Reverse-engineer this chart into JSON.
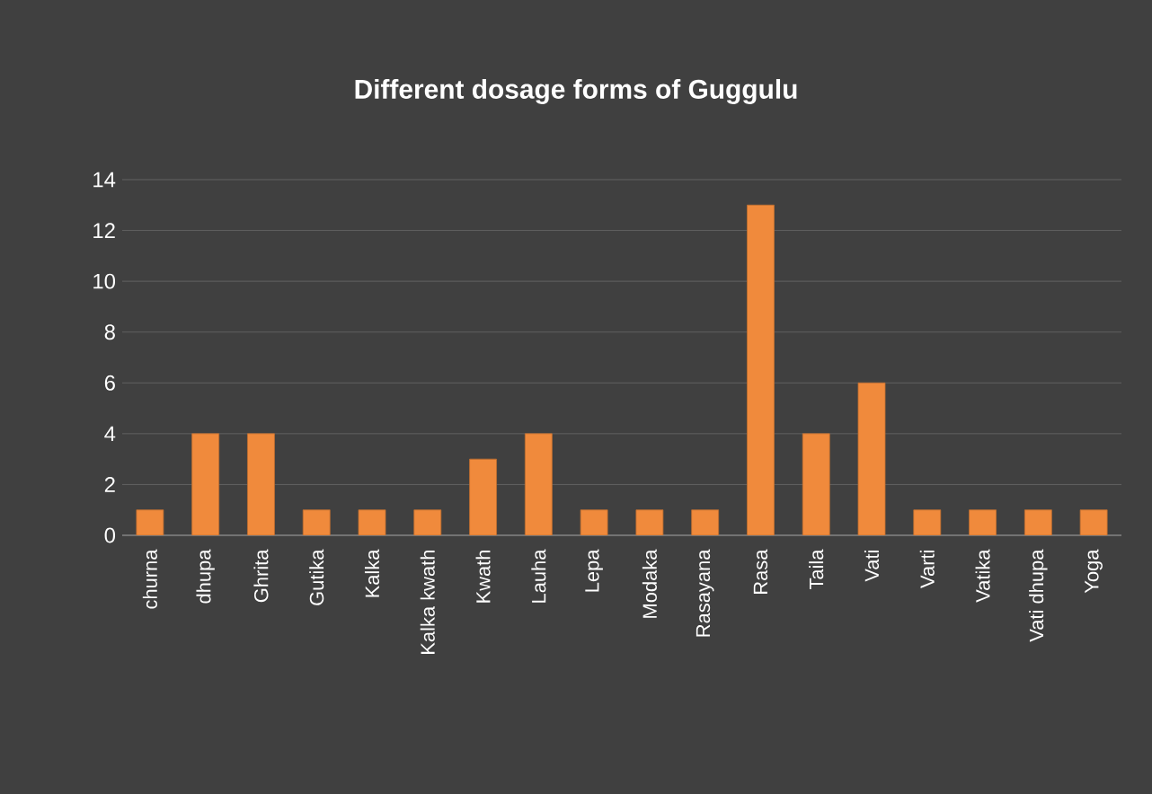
{
  "chart_data": {
    "type": "bar",
    "title": "Different dosage forms of Guggulu",
    "categories": [
      "churna",
      "dhupa",
      "Ghrita",
      "Gutika",
      "Kalka",
      "Kalka kwath",
      "Kwath",
      "Lauha",
      "Lepa",
      "Modaka",
      "Rasayana",
      "Rasa",
      "Taila",
      "Vati",
      "Varti",
      "Vatika",
      "Vati dhupa",
      "Yoga"
    ],
    "values": [
      1,
      4,
      4,
      1,
      1,
      1,
      3,
      4,
      1,
      1,
      1,
      13,
      4,
      6,
      1,
      1,
      1,
      1
    ],
    "color": "#f08a3c",
    "ylim": [
      0,
      14
    ],
    "yticks": [
      0,
      2,
      4,
      6,
      8,
      10,
      12,
      14
    ],
    "grid": "y"
  }
}
